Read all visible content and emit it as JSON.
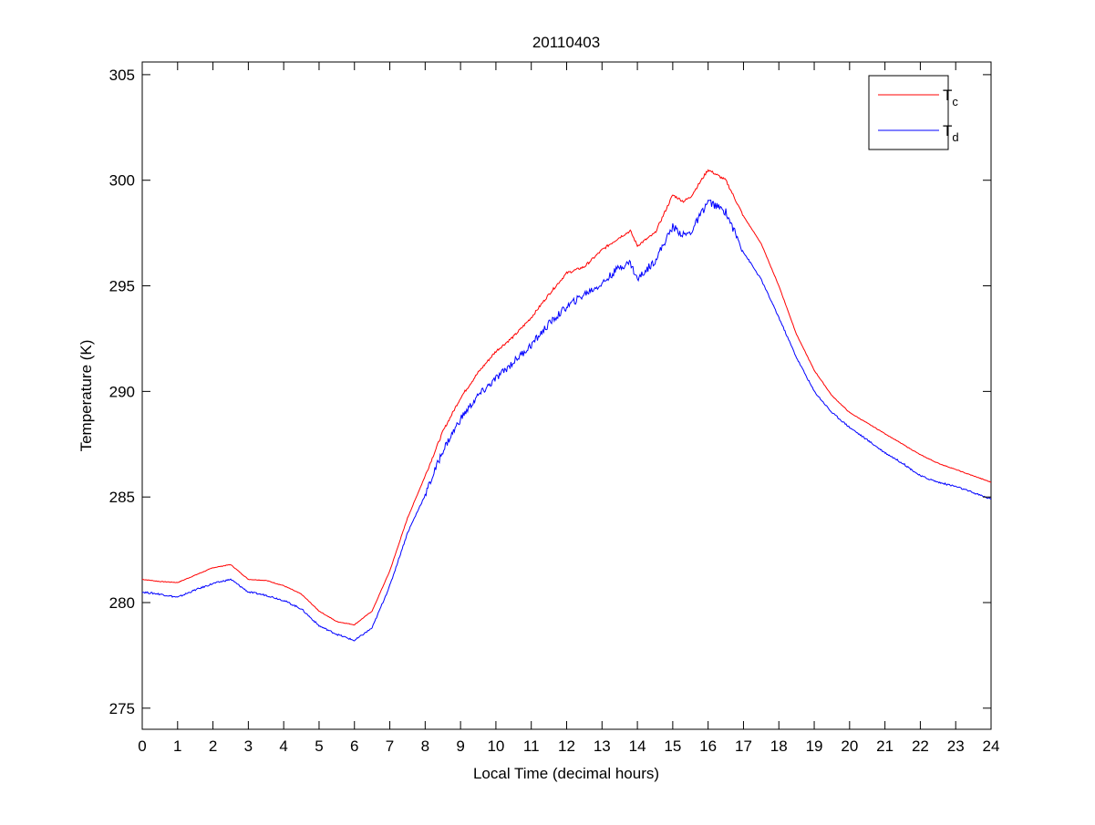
{
  "chart_data": {
    "type": "line",
    "title": "20110403",
    "xlabel": "Local Time (decimal hours)",
    "ylabel": "Temperature (K)",
    "xlim": [
      0,
      24
    ],
    "ylim": [
      274,
      305.6
    ],
    "xticks": [
      0,
      1,
      2,
      3,
      4,
      5,
      6,
      7,
      8,
      9,
      10,
      11,
      12,
      13,
      14,
      15,
      16,
      17,
      18,
      19,
      20,
      21,
      22,
      23,
      24
    ],
    "yticks": [
      275,
      280,
      285,
      290,
      295,
      300,
      305
    ],
    "grid": false,
    "legend_position": "top-right",
    "x": [
      0,
      0.5,
      1,
      1.5,
      2,
      2.5,
      3,
      3.5,
      4,
      4.5,
      5,
      5.5,
      6,
      6.5,
      7,
      7.5,
      8,
      8.5,
      9,
      9.5,
      10,
      10.5,
      11,
      11.5,
      12,
      12.5,
      13,
      13.5,
      13.8,
      14,
      14.5,
      15,
      15.3,
      15.5,
      16,
      16.5,
      17,
      17.5,
      18,
      18.5,
      19,
      19.5,
      20,
      20.5,
      21,
      21.5,
      22,
      22.5,
      23,
      23.5,
      24
    ],
    "series": [
      {
        "name": "T",
        "subscript": "c",
        "color": "#ff0000",
        "values": [
          281.1,
          281.0,
          280.95,
          281.3,
          281.65,
          281.8,
          281.1,
          281.05,
          280.8,
          280.4,
          279.6,
          279.1,
          278.95,
          279.6,
          281.5,
          284.0,
          286.0,
          288.1,
          289.7,
          290.9,
          291.9,
          292.6,
          293.5,
          294.6,
          295.6,
          295.9,
          296.7,
          297.3,
          297.6,
          296.9,
          297.5,
          299.3,
          299.0,
          299.2,
          300.5,
          300.0,
          298.3,
          297.0,
          295.0,
          292.7,
          291.0,
          289.8,
          289.0,
          288.5,
          288.0,
          287.5,
          287.0,
          286.6,
          286.3,
          286.0,
          285.7
        ]
      },
      {
        "name": "T",
        "subscript": "d",
        "color": "#0000ff",
        "values": [
          280.5,
          280.4,
          280.25,
          280.6,
          280.9,
          281.1,
          280.5,
          280.35,
          280.1,
          279.7,
          278.9,
          278.5,
          278.2,
          278.8,
          280.8,
          283.3,
          285.1,
          287.2,
          288.7,
          289.8,
          290.6,
          291.4,
          292.2,
          293.2,
          294.0,
          294.6,
          295.1,
          295.9,
          296.1,
          295.3,
          296.2,
          297.8,
          297.4,
          297.5,
          299.0,
          298.5,
          296.6,
          295.3,
          293.5,
          291.6,
          290.0,
          289.0,
          288.3,
          287.7,
          287.1,
          286.6,
          286.0,
          285.7,
          285.5,
          285.2,
          284.9
        ]
      }
    ]
  }
}
